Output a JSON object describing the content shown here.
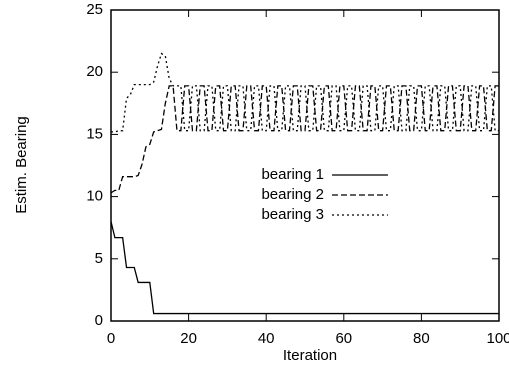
{
  "chart_data": {
    "type": "line",
    "xlabel": "Iteration",
    "ylabel": "Estim. Bearing",
    "xlim": [
      0,
      100
    ],
    "ylim": [
      0,
      25
    ],
    "xticks": [
      0,
      20,
      40,
      60,
      80,
      100
    ],
    "yticks": [
      0,
      5,
      10,
      15,
      20,
      25
    ],
    "legend": "center",
    "grid": false,
    "x": [
      0,
      1,
      2,
      3,
      4,
      5,
      6,
      7,
      8,
      9,
      10,
      11,
      12,
      13,
      14,
      15,
      16,
      17,
      18,
      19,
      20,
      21,
      22,
      23,
      24,
      25,
      26,
      27,
      28,
      29,
      30,
      31,
      32,
      33,
      34,
      35,
      36,
      37,
      38,
      39,
      40,
      41,
      42,
      43,
      44,
      45,
      46,
      47,
      48,
      49,
      50,
      51,
      52,
      53,
      54,
      55,
      56,
      57,
      58,
      59,
      60,
      61,
      62,
      63,
      64,
      65,
      66,
      67,
      68,
      69,
      70,
      71,
      72,
      73,
      74,
      75,
      76,
      77,
      78,
      79,
      80,
      81,
      82,
      83,
      84,
      85,
      86,
      87,
      88,
      89,
      90,
      91,
      92,
      93,
      94,
      95,
      96,
      97,
      98,
      99,
      100
    ],
    "series": [
      {
        "name": "bearing 1",
        "color": "#000000",
        "line_style": "solid",
        "values": [
          8,
          6.7,
          6.7,
          6.7,
          4.3,
          4.3,
          4.3,
          3.1,
          3.1,
          3.1,
          3.1,
          0.6,
          0.6,
          0.6,
          0.6,
          0.6,
          0.6,
          0.6,
          0.6,
          0.6,
          0.6,
          0.6,
          0.6,
          0.6,
          0.6,
          0.6,
          0.6,
          0.6,
          0.6,
          0.6,
          0.6,
          0.6,
          0.6,
          0.6,
          0.6,
          0.6,
          0.6,
          0.6,
          0.6,
          0.6,
          0.6,
          0.6,
          0.6,
          0.6,
          0.6,
          0.6,
          0.6,
          0.6,
          0.6,
          0.6,
          0.6,
          0.6,
          0.6,
          0.6,
          0.6,
          0.6,
          0.6,
          0.6,
          0.6,
          0.6,
          0.6,
          0.6,
          0.6,
          0.6,
          0.6,
          0.6,
          0.6,
          0.6,
          0.6,
          0.6,
          0.6,
          0.6,
          0.6,
          0.6,
          0.6,
          0.6,
          0.6,
          0.6,
          0.6,
          0.6,
          0.6,
          0.6,
          0.6,
          0.6,
          0.6,
          0.6,
          0.6,
          0.6,
          0.6,
          0.6,
          0.6,
          0.6,
          0.6,
          0.6,
          0.6,
          0.6,
          0.6,
          0.6,
          0.6,
          0.6,
          0.6
        ]
      },
      {
        "name": "bearing 2",
        "color": "#000000",
        "line_style": "dashed",
        "values": [
          10.3,
          10.5,
          10.5,
          11.6,
          11.6,
          11.6,
          11.6,
          11.7,
          12.6,
          14,
          14.2,
          15.2,
          15.3,
          15.4,
          17.5,
          18.9,
          18.9,
          15.3,
          15.3,
          18.9,
          18.9,
          15.3,
          15.3,
          18.9,
          18.9,
          15.3,
          15.3,
          18.9,
          18.9,
          15.3,
          15.3,
          18.9,
          18.9,
          15.3,
          15.3,
          18.9,
          18.9,
          15.3,
          15.3,
          18.9,
          18.9,
          15.3,
          15.3,
          18.9,
          18.9,
          15.3,
          15.3,
          18.9,
          18.9,
          15.3,
          15.3,
          18.9,
          18.9,
          15.3,
          15.3,
          18.9,
          18.9,
          15.3,
          15.3,
          18.9,
          18.9,
          15.3,
          15.3,
          18.9,
          18.9,
          15.3,
          15.3,
          18.9,
          18.9,
          15.3,
          15.3,
          18.9,
          18.9,
          15.3,
          15.3,
          18.9,
          18.9,
          15.3,
          15.3,
          18.9,
          18.9,
          15.3,
          15.3,
          18.9,
          18.9,
          15.3,
          15.3,
          18.9,
          18.9,
          15.3,
          15.3,
          18.9,
          18.9,
          15.3,
          15.3,
          18.9,
          18.9,
          15.3,
          15.3,
          18.9,
          18.9
        ]
      },
      {
        "name": "bearing 3",
        "color": "#000000",
        "line_style": "dotted",
        "values": [
          15.2,
          15.2,
          15.3,
          15.3,
          17.9,
          18.2,
          19,
          19,
          19,
          19,
          19,
          19.2,
          20.5,
          21.5,
          21.3,
          19.5,
          18.9,
          18.9,
          18.9,
          15.3,
          15.3,
          18.9,
          18.9,
          15.3,
          15.3,
          18.9,
          18.9,
          15.3,
          15.3,
          18.9,
          18.9,
          15.3,
          15.3,
          18.9,
          18.9,
          15.3,
          15.3,
          18.9,
          18.9,
          15.3,
          15.3,
          18.9,
          18.9,
          15.3,
          15.3,
          18.9,
          18.9,
          15.3,
          15.3,
          18.9,
          18.9,
          15.3,
          15.3,
          18.9,
          18.9,
          15.3,
          15.3,
          18.9,
          18.9,
          15.3,
          15.3,
          18.9,
          18.9,
          15.3,
          15.3,
          18.9,
          18.9,
          15.3,
          15.3,
          18.9,
          18.9,
          15.3,
          15.3,
          18.9,
          18.9,
          15.3,
          15.3,
          18.9,
          18.9,
          15.3,
          15.3,
          18.9,
          18.9,
          15.3,
          15.3,
          18.9,
          18.9,
          15.3,
          15.3,
          18.9,
          18.9,
          15.3,
          15.3,
          18.9,
          18.9,
          15.3,
          15.3,
          18.9,
          18.9,
          15.3,
          15.3
        ]
      }
    ]
  }
}
